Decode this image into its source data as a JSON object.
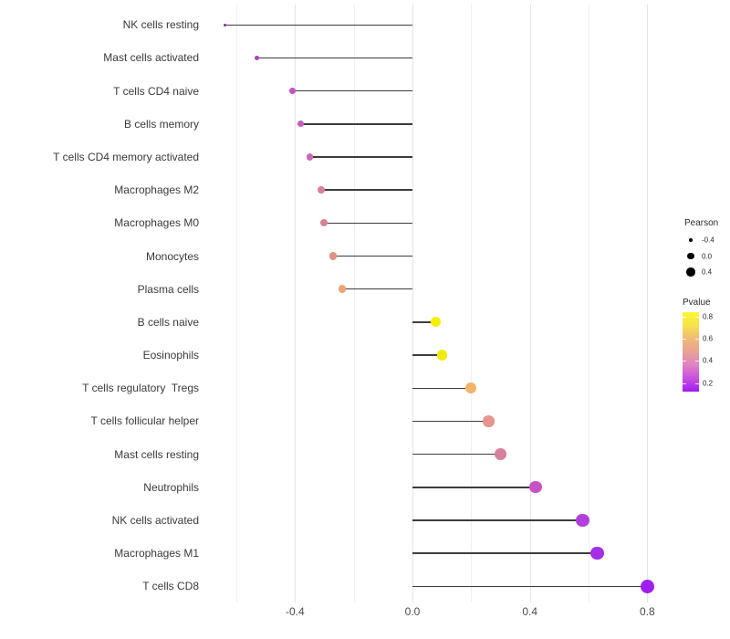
{
  "chart_data": {
    "type": "lollipop",
    "orientation": "horizontal",
    "grid": true,
    "background": "#ffffff",
    "stem_color": "#3d3d3d",
    "x_axis": {
      "ticks": [
        {
          "value": -0.4,
          "label": "-0.4"
        },
        {
          "value": 0.0,
          "label": "0.0"
        },
        {
          "value": 0.4,
          "label": "0.4"
        },
        {
          "value": 0.8,
          "label": "0.8"
        }
      ],
      "minor_gridlines": [
        -0.6,
        -0.2,
        0.2,
        0.6
      ],
      "xlim": [
        -0.715,
        0.885
      ]
    },
    "rows": [
      {
        "label": "NK cells resting",
        "pearson": -0.64,
        "pvalue": 0.1,
        "color": "#8e22ac"
      },
      {
        "label": "Mast cells activated",
        "pearson": -0.53,
        "pvalue": 0.18,
        "color": "#b13dc6"
      },
      {
        "label": "T cells CD4 naive",
        "pearson": -0.41,
        "pvalue": 0.22,
        "color": "#c253c4"
      },
      {
        "label": "B cells memory",
        "pearson": -0.38,
        "pvalue": 0.24,
        "color": "#c55cc0"
      },
      {
        "label": "T cells CD4 memory activated",
        "pearson": -0.35,
        "pvalue": 0.28,
        "color": "#cb68b6"
      },
      {
        "label": "Macrophages M2",
        "pearson": -0.31,
        "pvalue": 0.37,
        "color": "#d77f9e"
      },
      {
        "label": "Macrophages M0",
        "pearson": -0.3,
        "pvalue": 0.39,
        "color": "#d98292"
      },
      {
        "label": "Monocytes",
        "pearson": -0.27,
        "pvalue": 0.47,
        "color": "#e29381"
      },
      {
        "label": "Plasma cells",
        "pearson": -0.24,
        "pvalue": 0.55,
        "color": "#eca773"
      },
      {
        "label": "B cells naive",
        "pearson": 0.08,
        "pvalue": 0.82,
        "color": "#f6ee05"
      },
      {
        "label": "Eosinophils",
        "pearson": 0.1,
        "pvalue": 0.8,
        "color": "#f3ea0c"
      },
      {
        "label": "T cells regulatory  Tregs",
        "pearson": 0.2,
        "pvalue": 0.57,
        "color": "#f0b468"
      },
      {
        "label": "T cells follicular helper",
        "pearson": 0.26,
        "pvalue": 0.45,
        "color": "#e6948e"
      },
      {
        "label": "Mast cells resting",
        "pearson": 0.3,
        "pvalue": 0.36,
        "color": "#d87f9d"
      },
      {
        "label": "Neutrophils",
        "pearson": 0.42,
        "pvalue": 0.22,
        "color": "#c653c6"
      },
      {
        "label": "NK cells activated",
        "pearson": 0.58,
        "pvalue": 0.14,
        "color": "#b13fde"
      },
      {
        "label": "Macrophages M1",
        "pearson": 0.63,
        "pvalue": 0.11,
        "color": "#a52fe6"
      },
      {
        "label": "T cells CD8",
        "pearson": 0.8,
        "pvalue": 0.06,
        "color": "#a01fef"
      }
    ],
    "legend_size": {
      "title": "Pearson",
      "items": [
        {
          "label": "-0.4",
          "value": -0.4
        },
        {
          "label": "0.0",
          "value": 0.0
        },
        {
          "label": "0.4",
          "value": 0.4
        }
      ]
    },
    "legend_color": {
      "title": "Pvalue",
      "range": [
        0.125,
        0.838
      ],
      "ticks": [
        {
          "label": "0.8",
          "value": 0.8
        },
        {
          "label": "0.6",
          "value": 0.6
        },
        {
          "label": "0.4",
          "value": 0.4
        },
        {
          "label": "0.2",
          "value": 0.2
        }
      ],
      "gradient_bottom_to_top": [
        "#a01bf2",
        "#c94fde",
        "#e081c4",
        "#e9a195",
        "#efba77",
        "#f7e24e",
        "#faf832"
      ]
    }
  }
}
